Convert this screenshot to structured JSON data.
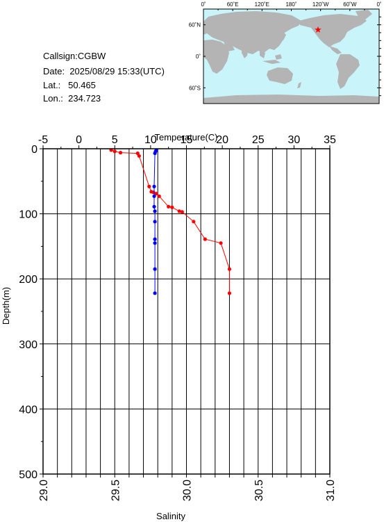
{
  "header": {
    "callsign": "Callsign:CGBW",
    "date_label": "Date:",
    "date": "2025/08/29 15:33(UTC)",
    "lat_label": "Lat.:",
    "lat": "50.465",
    "lon_label": "Lon.:",
    "lon": "234.723"
  },
  "map": {
    "lon_ticks": [
      "0˚",
      "60˚E",
      "120˚E",
      "180˚",
      "120˚W",
      "60˚W",
      "0˚"
    ],
    "lat_ticks": [
      "60˚N",
      "0˚",
      "60˚S"
    ],
    "station": {
      "lat": 50.465,
      "lon": 234.723
    },
    "colors": {
      "ocean": "#c8f4fa",
      "land": "#b4b4b4",
      "marker": "#ff0000"
    }
  },
  "chart_data": {
    "type": "line",
    "title": "",
    "top_axis_label": "Temperature(C)",
    "bottom_axis_label": "Salinity",
    "ylabel": "Depth(m)",
    "temperature_range": [
      -5,
      35
    ],
    "temperature_ticks": [
      "-5",
      "0",
      "5",
      "10",
      "15",
      "20",
      "25",
      "30",
      "35"
    ],
    "salinity_range": [
      29.0,
      31.0
    ],
    "salinity_ticks": [
      "29.0",
      "29.5",
      "30.0",
      "30.5",
      "31.0"
    ],
    "depth_range": [
      0,
      500
    ],
    "depth_ticks": [
      "0",
      "100",
      "200",
      "300",
      "400",
      "500"
    ],
    "grid": true,
    "series": [
      {
        "name": "Temperature",
        "axis": "top",
        "color": "#ff0000",
        "points": [
          {
            "depth": 2,
            "value": 4.5
          },
          {
            "depth": 4,
            "value": 5.0
          },
          {
            "depth": 6,
            "value": 5.8
          },
          {
            "depth": 7,
            "value": 8.2
          },
          {
            "depth": 11,
            "value": 8.4
          },
          {
            "depth": 58,
            "value": 9.8
          },
          {
            "depth": 66,
            "value": 10.1
          },
          {
            "depth": 67,
            "value": 10.4
          },
          {
            "depth": 69,
            "value": 10.8
          },
          {
            "depth": 73,
            "value": 11.2
          },
          {
            "depth": 89,
            "value": 12.5
          },
          {
            "depth": 90,
            "value": 13.0
          },
          {
            "depth": 96,
            "value": 14.0
          },
          {
            "depth": 97,
            "value": 14.4
          },
          {
            "depth": 112,
            "value": 16.0
          },
          {
            "depth": 139,
            "value": 17.6
          },
          {
            "depth": 145,
            "value": 19.8
          },
          {
            "depth": 185,
            "value": 21.0
          },
          {
            "depth": 222,
            "value": 21.0
          }
        ]
      },
      {
        "name": "Salinity",
        "axis": "bottom",
        "color": "#0000ff",
        "points": [
          {
            "depth": 2,
            "value": 29.79
          },
          {
            "depth": 4,
            "value": 29.785
          },
          {
            "depth": 7,
            "value": 29.78
          },
          {
            "depth": 58,
            "value": 29.775
          },
          {
            "depth": 73,
            "value": 29.775
          },
          {
            "depth": 89,
            "value": 29.775
          },
          {
            "depth": 96,
            "value": 29.78
          },
          {
            "depth": 112,
            "value": 29.78
          },
          {
            "depth": 139,
            "value": 29.78
          },
          {
            "depth": 145,
            "value": 29.78
          },
          {
            "depth": 185,
            "value": 29.78
          },
          {
            "depth": 222,
            "value": 29.78
          }
        ]
      }
    ]
  }
}
